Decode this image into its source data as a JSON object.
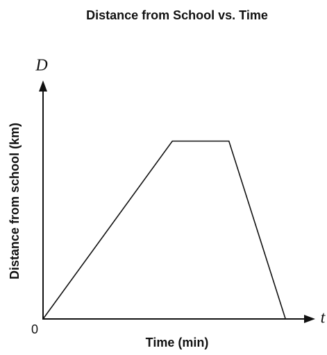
{
  "chart_data": {
    "type": "line",
    "title": "Distance from School vs. Time",
    "x_label": "Time (min)",
    "y_label": "Distance from school (km)",
    "x_axis_symbol": "t",
    "y_axis_symbol": "D",
    "x": [
      0,
      4.8,
      6.9,
      9.0
    ],
    "series": [
      {
        "color": "#111111",
        "values": [
          0,
          7.5,
          7.5,
          0
        ]
      }
    ],
    "xlim": [
      0,
      10
    ],
    "ylim": [
      0,
      10
    ],
    "xticks": [
      0
    ],
    "grid": false
  }
}
